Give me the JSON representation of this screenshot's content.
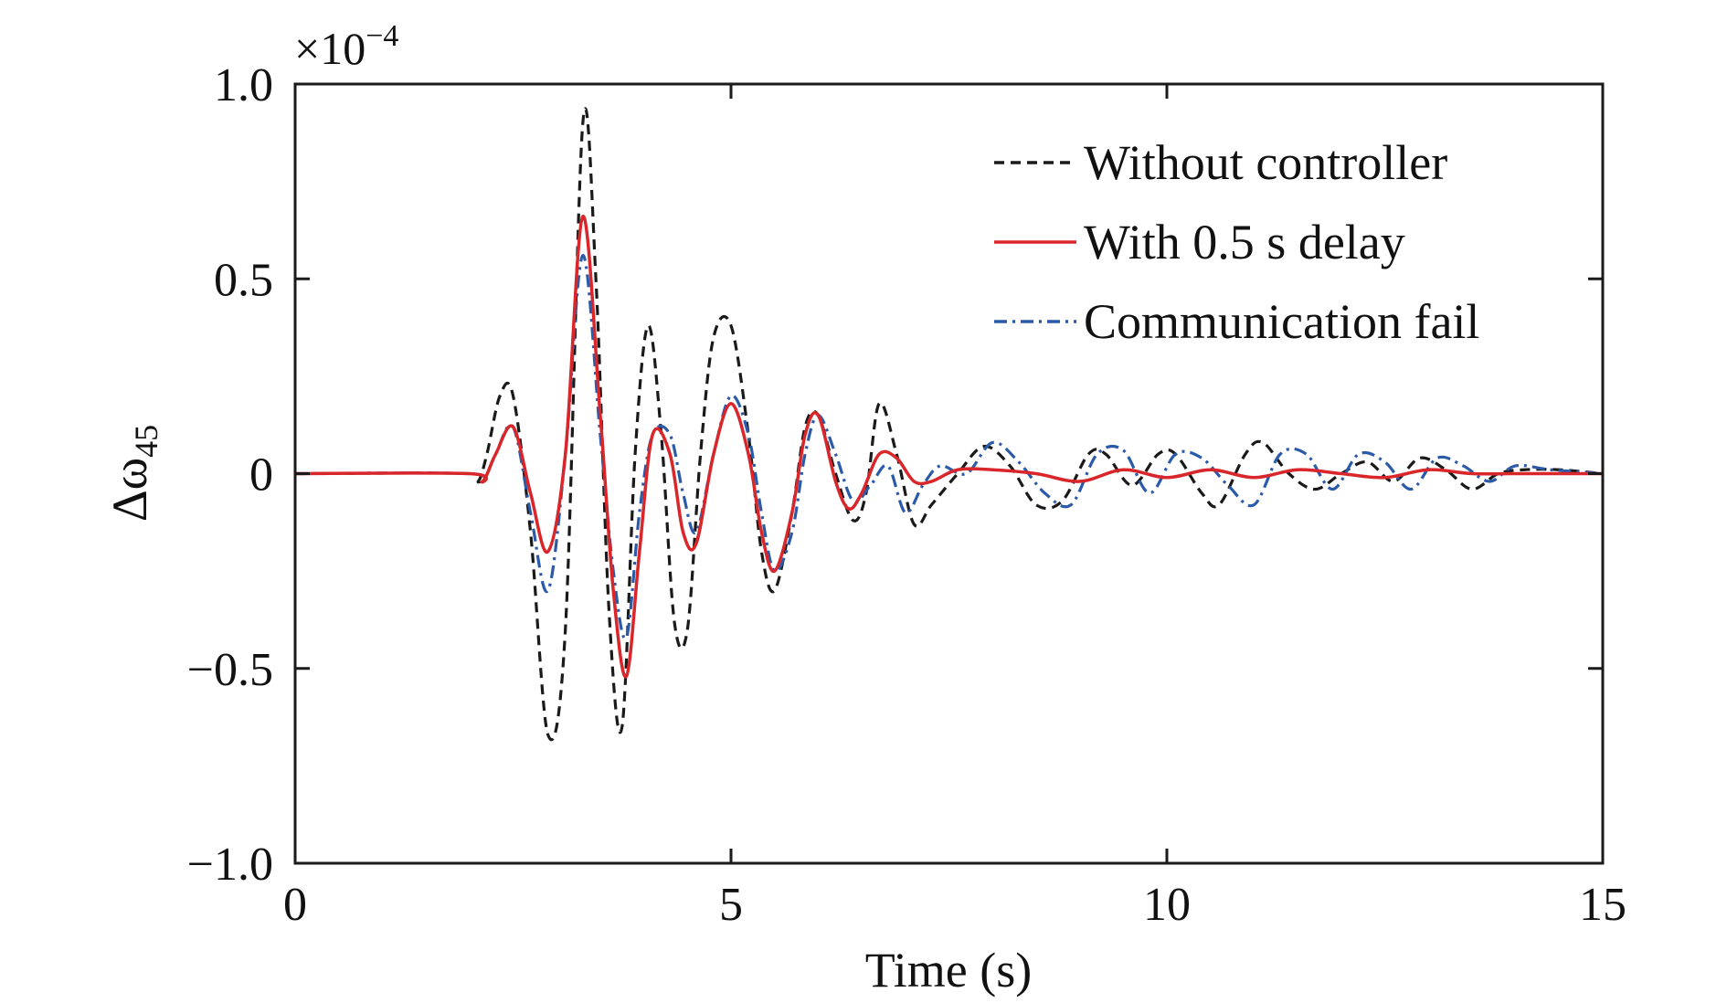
{
  "chart_data": {
    "type": "line",
    "xlabel": "Time (s)",
    "ylabel": "Δω",
    "ylabel_subscript": "45",
    "y_multiplier": "×10",
    "y_multiplier_exponent": "−4",
    "xlim": [
      0,
      15
    ],
    "ylim": [
      -1.0,
      1.0
    ],
    "xticks": [
      0,
      5,
      10,
      15
    ],
    "xtick_labels": [
      "0",
      "5",
      "10",
      "15"
    ],
    "yticks": [
      -1.0,
      -0.5,
      0,
      0.5,
      1.0
    ],
    "ytick_labels": [
      "−1.0",
      "−0.5",
      "0",
      "0.5",
      "1.0"
    ],
    "grid": false,
    "legend_position": "top-right",
    "series": [
      {
        "name": "Without controller",
        "color": "#1a1a1a",
        "dash": "dashed",
        "x": [
          0,
          2.0,
          2.1,
          2.2,
          2.35,
          2.5,
          2.7,
          2.9,
          3.1,
          3.3,
          3.45,
          3.6,
          3.75,
          3.9,
          4.05,
          4.2,
          4.35,
          4.5,
          4.65,
          4.8,
          5.0,
          5.2,
          5.35,
          5.5,
          5.7,
          5.85,
          6.0,
          6.2,
          6.4,
          6.55,
          6.7,
          6.9,
          7.1,
          7.3,
          7.6,
          7.9,
          8.2,
          8.5,
          8.8,
          9.1,
          9.3,
          9.6,
          9.9,
          10.1,
          10.4,
          10.6,
          10.9,
          11.1,
          11.4,
          11.7,
          12.0,
          12.3,
          12.6,
          12.9,
          13.2,
          13.5,
          13.8,
          14.1,
          14.5,
          15.0
        ],
        "y": [
          0,
          0,
          -0.02,
          0.05,
          0.2,
          0.2,
          -0.15,
          -0.67,
          -0.4,
          0.9,
          0.5,
          -0.35,
          -0.65,
          0.05,
          0.38,
          0.1,
          -0.38,
          -0.4,
          0.05,
          0.35,
          0.38,
          0.1,
          -0.2,
          -0.3,
          -0.1,
          0.12,
          0.15,
          0.0,
          -0.12,
          -0.05,
          0.18,
          0.05,
          -0.13,
          -0.08,
          0.0,
          0.07,
          0.02,
          -0.08,
          -0.07,
          0.05,
          0.05,
          -0.03,
          0.05,
          0.05,
          -0.05,
          -0.08,
          0.05,
          0.08,
          0.0,
          -0.04,
          0.0,
          0.03,
          -0.02,
          0.04,
          0.01,
          -0.04,
          0.0,
          0.01,
          0.01,
          0.0
        ]
      },
      {
        "name": "With 0.5 s delay",
        "color": "#d9262b",
        "dash": "solid",
        "x": [
          0,
          2.0,
          2.15,
          2.3,
          2.5,
          2.7,
          2.9,
          3.1,
          3.3,
          3.5,
          3.65,
          3.8,
          3.95,
          4.1,
          4.3,
          4.45,
          4.6,
          4.8,
          5.0,
          5.2,
          5.35,
          5.5,
          5.7,
          5.85,
          6.0,
          6.2,
          6.35,
          6.5,
          6.7,
          6.9,
          7.1,
          7.3,
          7.6,
          8.0,
          8.5,
          9.0,
          9.5,
          10.0,
          10.5,
          11.0,
          11.5,
          12.0,
          12.5,
          13.0,
          13.5,
          14.0,
          15.0
        ],
        "y": [
          0,
          0,
          -0.02,
          0.05,
          0.12,
          -0.05,
          -0.2,
          0.05,
          0.66,
          0.15,
          -0.3,
          -0.52,
          -0.2,
          0.1,
          0.05,
          -0.15,
          -0.18,
          0.05,
          0.18,
          0.05,
          -0.15,
          -0.25,
          -0.1,
          0.1,
          0.15,
          -0.02,
          -0.09,
          -0.05,
          0.05,
          0.04,
          -0.02,
          -0.02,
          0.01,
          0.01,
          0.0,
          -0.02,
          0.01,
          -0.01,
          0.01,
          -0.01,
          0.01,
          0.0,
          -0.01,
          0.01,
          0.0,
          0.0,
          0.0
        ]
      },
      {
        "name": "Communication fail",
        "color": "#2b5aa8",
        "dash": "dashdot",
        "x": [
          0,
          2.0,
          2.15,
          2.3,
          2.5,
          2.7,
          2.9,
          3.1,
          3.3,
          3.5,
          3.65,
          3.8,
          3.95,
          4.1,
          4.3,
          4.45,
          4.6,
          4.8,
          5.0,
          5.2,
          5.35,
          5.5,
          5.7,
          5.85,
          6.0,
          6.2,
          6.4,
          6.6,
          6.8,
          7.0,
          7.2,
          7.4,
          7.7,
          8.0,
          8.3,
          8.6,
          8.9,
          9.2,
          9.5,
          9.8,
          10.1,
          10.4,
          10.7,
          11.0,
          11.3,
          11.6,
          11.9,
          12.2,
          12.5,
          12.8,
          13.1,
          13.4,
          13.7,
          14.0,
          14.4,
          15.0
        ],
        "y": [
          0,
          0,
          -0.02,
          0.05,
          0.12,
          -0.1,
          -0.3,
          0.05,
          0.56,
          0.1,
          -0.25,
          -0.42,
          -0.1,
          0.1,
          0.1,
          -0.05,
          -0.15,
          0.05,
          0.2,
          0.1,
          -0.1,
          -0.25,
          -0.15,
          0.05,
          0.15,
          0.05,
          -0.07,
          -0.03,
          0.02,
          -0.1,
          -0.03,
          0.02,
          0.0,
          0.08,
          0.03,
          -0.05,
          -0.08,
          0.05,
          0.06,
          -0.05,
          0.05,
          0.04,
          -0.03,
          -0.08,
          0.05,
          0.05,
          -0.04,
          0.05,
          0.03,
          -0.04,
          0.04,
          0.02,
          -0.02,
          0.02,
          0.01,
          0.0
        ]
      }
    ]
  }
}
